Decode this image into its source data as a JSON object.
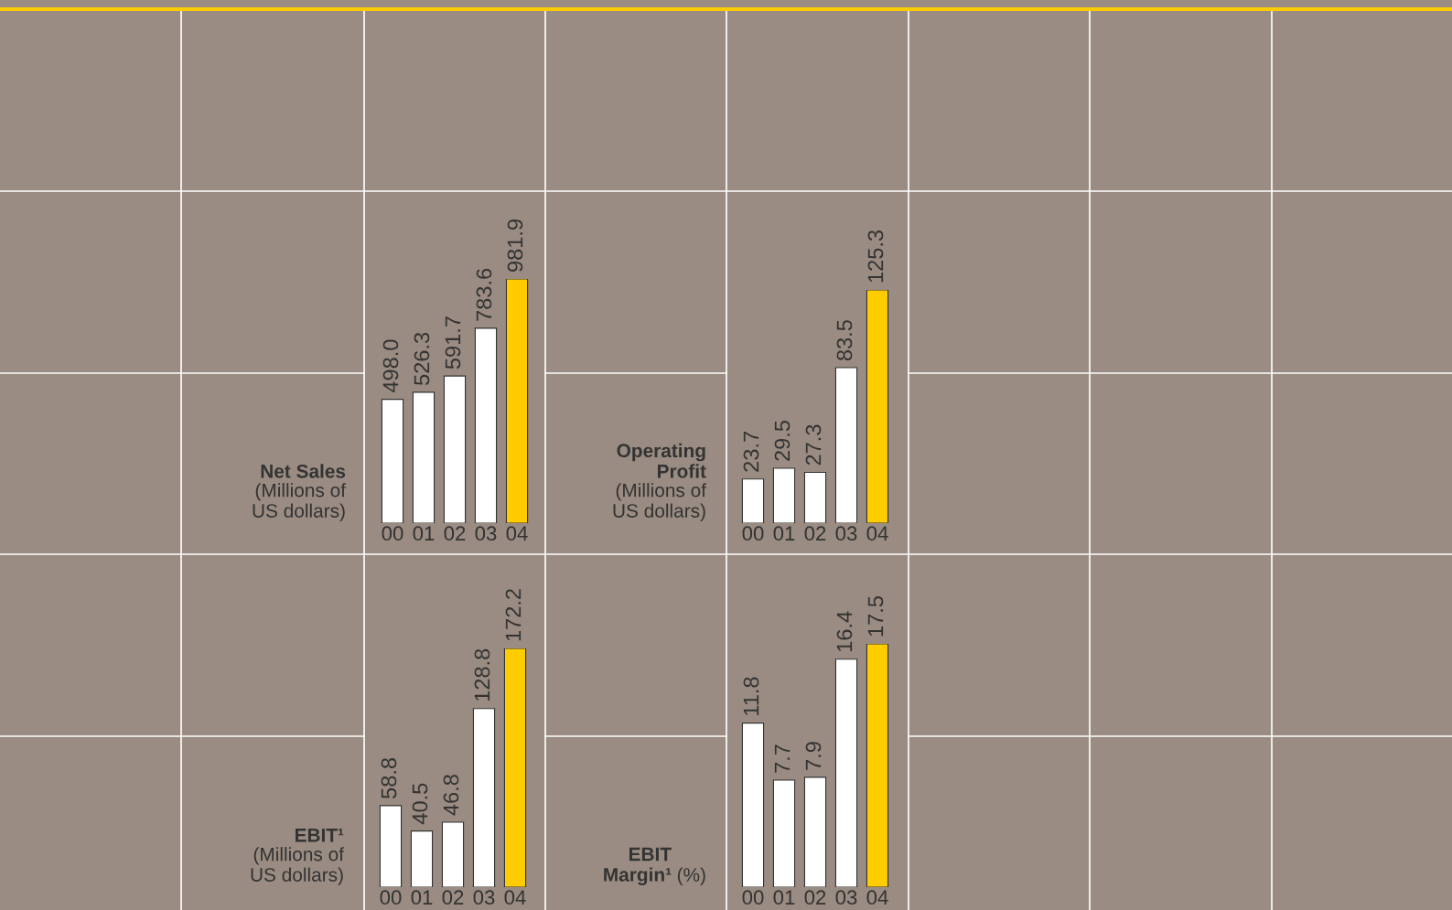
{
  "chart_data": [
    {
      "type": "bar",
      "title": "Net Sales",
      "subtitle": "(Millions of US dollars)",
      "categories": [
        "00",
        "01",
        "02",
        "03",
        "04"
      ],
      "values": [
        498.0,
        526.3,
        591.7,
        783.6,
        981.9
      ],
      "value_labels": [
        "498.0",
        "526.3",
        "591.7",
        "783.6",
        "981.9"
      ],
      "colors": [
        "#ffffff",
        "#ffffff",
        "#ffffff",
        "#ffffff",
        "#ffcc00"
      ],
      "tick_labels": "x"
    },
    {
      "type": "bar",
      "title": "Operating Profit",
      "subtitle": "(Millions of US dollars)",
      "categories": [
        "00",
        "01",
        "02",
        "03",
        "04"
      ],
      "values": [
        23.7,
        29.5,
        27.3,
        83.5,
        125.3
      ],
      "value_labels": [
        "23.7",
        "29.5",
        "27.3",
        "83.5",
        "125.3"
      ],
      "colors": [
        "#ffffff",
        "#ffffff",
        "#ffffff",
        "#ffffff",
        "#ffcc00"
      ],
      "tick_labels": "x"
    },
    {
      "type": "bar",
      "title": "EBIT¹",
      "subtitle": "(Millions of US dollars)",
      "categories": [
        "00",
        "01",
        "02",
        "03",
        "04"
      ],
      "values": [
        58.8,
        40.5,
        46.8,
        128.8,
        172.2
      ],
      "value_labels": [
        "58.8",
        "40.5",
        "46.8",
        "128.8",
        "172.2"
      ],
      "colors": [
        "#ffffff",
        "#ffffff",
        "#ffffff",
        "#ffffff",
        "#ffcc00"
      ],
      "tick_labels": "x"
    },
    {
      "type": "bar",
      "title": "EBIT Margin¹",
      "subtitle": "(%)",
      "categories": [
        "00",
        "01",
        "02",
        "03",
        "04"
      ],
      "values": [
        11.8,
        7.7,
        7.9,
        16.4,
        17.5
      ],
      "value_labels": [
        "11.8",
        "7.7",
        "7.9",
        "16.4",
        "17.5"
      ],
      "colors": [
        "#ffffff",
        "#ffffff",
        "#ffffff",
        "#ffffff",
        "#ffcc00"
      ],
      "tick_labels": "x"
    }
  ]
}
